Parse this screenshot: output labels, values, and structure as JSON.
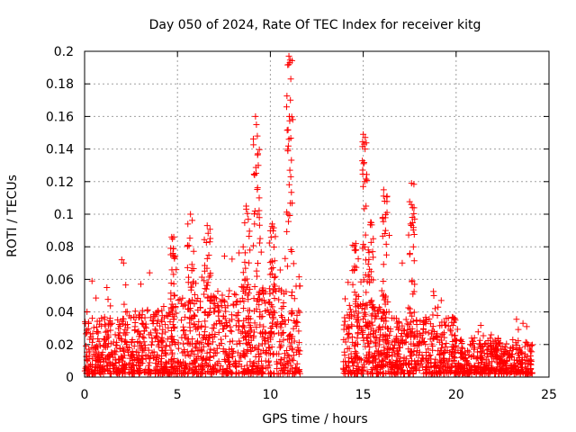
{
  "chart_data": {
    "type": "scatter",
    "title": "Day 050 of 2024, Rate Of TEC Index for receiver kitg",
    "xlabel": "GPS time / hours",
    "ylabel": "ROTI / TECUs",
    "xlim": [
      0,
      25
    ],
    "ylim": [
      0,
      0.2
    ],
    "x_ticks": [
      0,
      5,
      10,
      15,
      20,
      25
    ],
    "y_ticks": [
      0,
      0.02,
      0.04,
      0.06,
      0.08,
      0.1,
      0.12,
      0.14,
      0.16,
      0.18,
      0.2
    ],
    "x_tick_labels": [
      "0",
      "5",
      "10",
      "15",
      "20",
      "25"
    ],
    "y_tick_labels": [
      "0",
      "0.02",
      "0.04",
      "0.06",
      "0.08",
      "0.1",
      "0.12",
      "0.14",
      "0.16",
      "0.18",
      "0.2"
    ],
    "grid": true,
    "marker": "+",
    "color": "#ff0000",
    "data_gap_hours": [
      11.6,
      13.9
    ],
    "series": [
      {
        "name": "ROTI",
        "x": [
          9.2,
          9.25,
          9.3,
          9.35,
          9.4,
          9.3,
          9.15,
          9.45,
          11.0,
          11.05,
          11.1,
          11.08,
          11.02,
          11.0,
          11.05,
          10.95,
          11.1,
          15.0,
          15.05,
          15.1,
          15.02,
          15.08,
          15.15,
          16.1,
          16.15,
          16.05,
          16.2,
          17.6,
          17.65,
          17.55,
          17.7,
          3.5,
          4.8,
          5.7,
          6.6,
          8.7,
          10.1,
          8.9,
          2.0,
          2.1,
          1.2,
          0.4,
          14.6,
          15.4,
          16.4,
          17.1,
          18.8,
          19.2,
          23.6,
          23.8
        ],
        "y": [
          0.16,
          0.155,
          0.148,
          0.13,
          0.11,
          0.1,
          0.124,
          0.085,
          0.197,
          0.193,
          0.183,
          0.17,
          0.16,
          0.146,
          0.127,
          0.1,
          0.123,
          0.149,
          0.143,
          0.14,
          0.131,
          0.12,
          0.105,
          0.115,
          0.108,
          0.098,
          0.09,
          0.119,
          0.104,
          0.094,
          0.08,
          0.064,
          0.086,
          0.1,
          0.093,
          0.105,
          0.094,
          0.078,
          0.072,
          0.07,
          0.055,
          0.059,
          0.082,
          0.095,
          0.087,
          0.07,
          0.05,
          0.047,
          0.033,
          0.031
        ]
      }
    ]
  }
}
